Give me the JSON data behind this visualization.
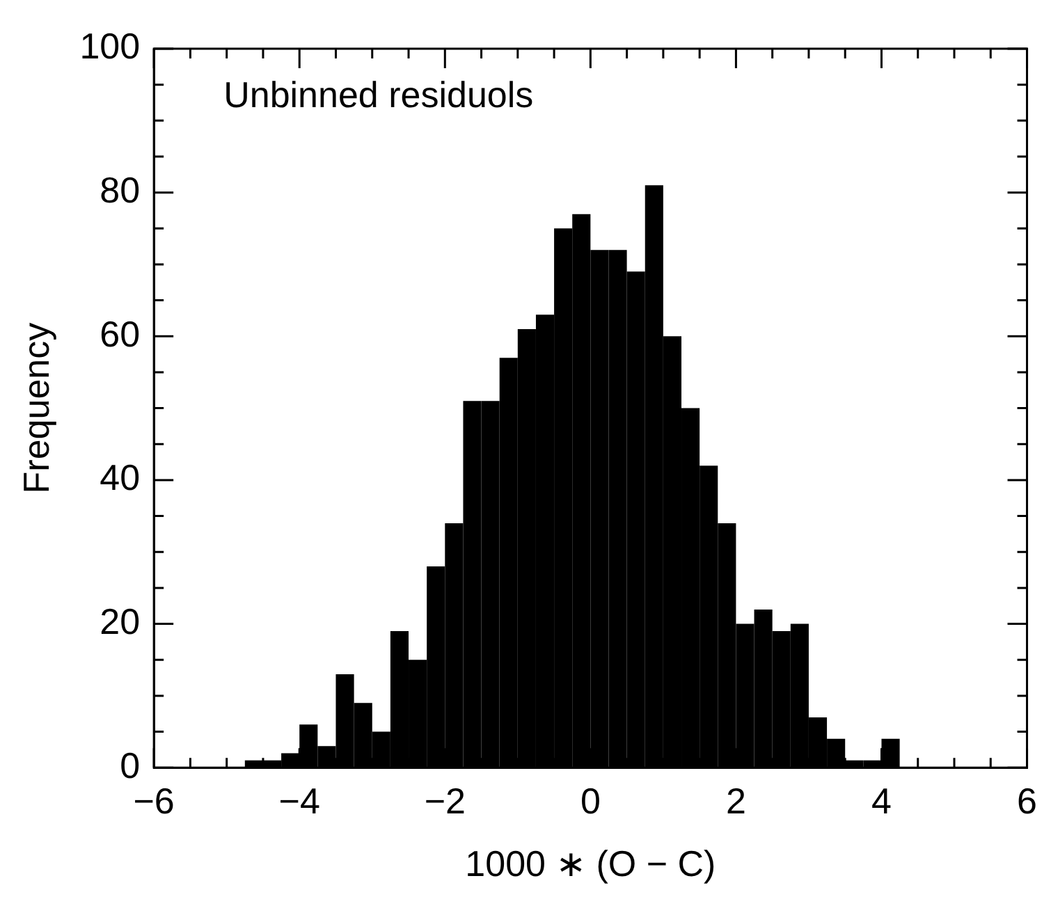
{
  "chart_data": {
    "type": "histogram",
    "xlabel": "1000 ∗ (O − C)",
    "ylabel": "Frequency",
    "annotations": [
      "Unbinned residuols"
    ],
    "bins": [
      -4.75,
      -4.5,
      -4.25,
      -4,
      -3.75,
      -3.5,
      -3.25,
      -3,
      -2.75,
      -2.5,
      -2.25,
      -2,
      -1.75,
      -1.5,
      -1.25,
      -1,
      -0.75,
      -0.5,
      -0.25,
      0,
      0.25,
      0.5,
      0.75,
      1,
      1.25,
      1.5,
      1.75,
      2,
      2.25,
      2.5,
      2.75,
      3,
      3.25,
      3.5,
      3.75,
      4,
      4.25
    ],
    "values": [
      1,
      1,
      2,
      6,
      3,
      13,
      9,
      5,
      19,
      15,
      28,
      34,
      51,
      51,
      57,
      61,
      63,
      75,
      77,
      72,
      72,
      69,
      81,
      60,
      50,
      42,
      34,
      20,
      22,
      19,
      20,
      7,
      4,
      1,
      1,
      4
    ],
    "color": "#000000",
    "xlim": [
      -6,
      6
    ],
    "xticks": [
      {
        "value": -6,
        "label": "−6"
      },
      {
        "value": -5.5,
        "label": null
      },
      {
        "value": -5,
        "label": null
      },
      {
        "value": -4.5,
        "label": null
      },
      {
        "value": -4,
        "label": "−4"
      },
      {
        "value": -3.5,
        "label": null
      },
      {
        "value": -3,
        "label": null
      },
      {
        "value": -2.5,
        "label": null
      },
      {
        "value": -2,
        "label": "−2"
      },
      {
        "value": -1.5,
        "label": null
      },
      {
        "value": -1,
        "label": null
      },
      {
        "value": -0.5,
        "label": null
      },
      0,
      {
        "value": 0.5,
        "label": null
      },
      {
        "value": 1,
        "label": null
      },
      {
        "value": 1.5,
        "label": null
      },
      2,
      {
        "value": 2.5,
        "label": null
      },
      {
        "value": 3,
        "label": null
      },
      {
        "value": 3.5,
        "label": null
      },
      4,
      {
        "value": 4.5,
        "label": null
      },
      {
        "value": 5,
        "label": null
      },
      {
        "value": 5.5,
        "label": null
      },
      6
    ],
    "ylim": [
      0,
      100
    ],
    "yticks": [
      0,
      {
        "value": 5,
        "label": null
      },
      {
        "value": 10,
        "label": null
      },
      {
        "value": 15,
        "label": null
      },
      20,
      {
        "value": 25,
        "label": null
      },
      {
        "value": 30,
        "label": null
      },
      {
        "value": 35,
        "label": null
      },
      40,
      {
        "value": 45,
        "label": null
      },
      {
        "value": 50,
        "label": null
      },
      {
        "value": 55,
        "label": null
      },
      60,
      {
        "value": 65,
        "label": null
      },
      {
        "value": 70,
        "label": null
      },
      {
        "value": 75,
        "label": null
      },
      80,
      {
        "value": 85,
        "label": null
      },
      {
        "value": 90,
        "label": null
      },
      {
        "value": 95,
        "label": null
      },
      100
    ],
    "grid": false,
    "legend": false
  }
}
